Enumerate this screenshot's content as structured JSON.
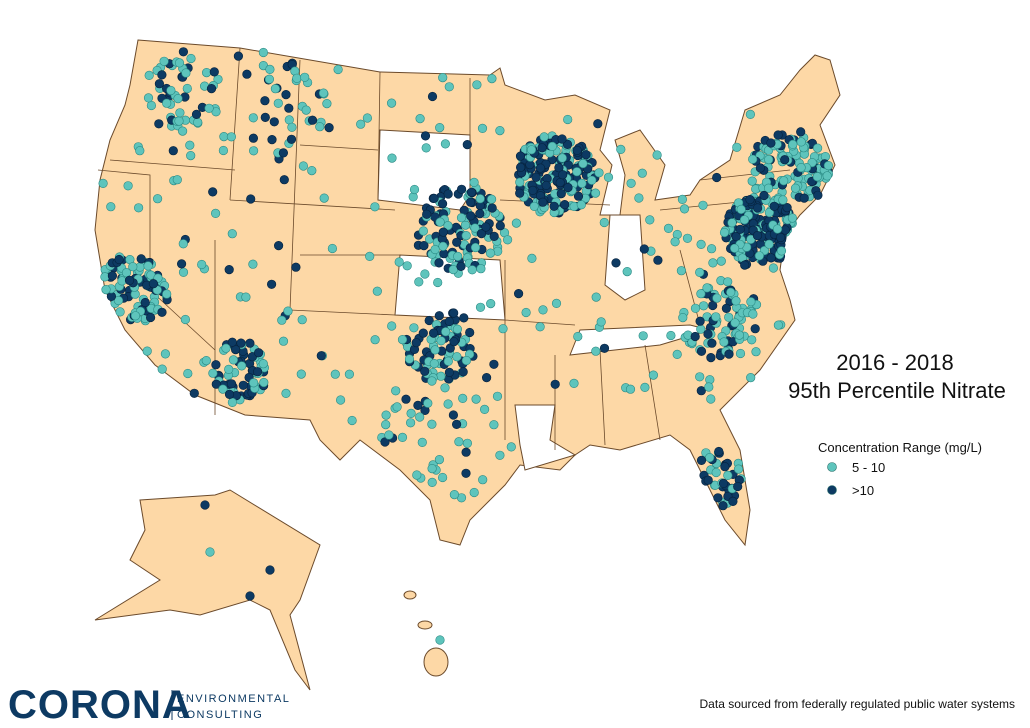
{
  "title": {
    "line1": "2016 - 2018",
    "line2": "95th Percentile Nitrate"
  },
  "legend": {
    "title": "Concentration Range (mg/L)",
    "items": [
      {
        "label": "5 - 10",
        "color": "#5ec4bc"
      },
      {
        "label": ">10",
        "color": "#0d3a63"
      }
    ]
  },
  "source": "Data sourced from federally regulated public water systems",
  "logo": {
    "name": "CORONA",
    "line1": "ENVIRONMENTAL",
    "line2": "CONSULTING"
  }
}
